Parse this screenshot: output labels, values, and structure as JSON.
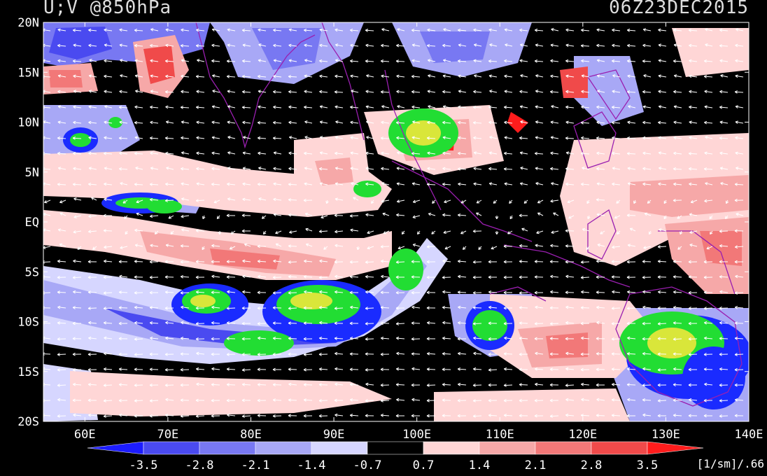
{
  "title_left": "U;V @850hPa",
  "title_right": "06Z23DEC2015",
  "lat_labels": [
    "20N",
    "15N",
    "10N",
    "5N",
    "EQ",
    "5S",
    "10S",
    "15S",
    "20S"
  ],
  "lon_labels": [
    "60E",
    "70E",
    "80E",
    "90E",
    "100E",
    "110E",
    "120E",
    "130E",
    "140E"
  ],
  "colorbar": {
    "labels": [
      "-3.5",
      "-2.8",
      "-2.1",
      "-1.4",
      "-0.7",
      "0.7",
      "1.4",
      "2.1",
      "2.8",
      "3.5"
    ],
    "colors": [
      "#1c1cff",
      "#4a4af0",
      "#7878f2",
      "#a8a8f6",
      "#d6d6ff",
      "#000000",
      "#ffd6d6",
      "#f6a8a8",
      "#f27878",
      "#f04a4a",
      "#ff1c1c"
    ],
    "units": "[1/sm]/.66"
  },
  "colors": {
    "background": "#000000",
    "coastline": "#9a1fb0",
    "wind_vector": "#ffffff",
    "precip_green": "#22dd33",
    "precip_yellow": "#d9e63a",
    "precip_blue": "#1a2bff"
  }
}
